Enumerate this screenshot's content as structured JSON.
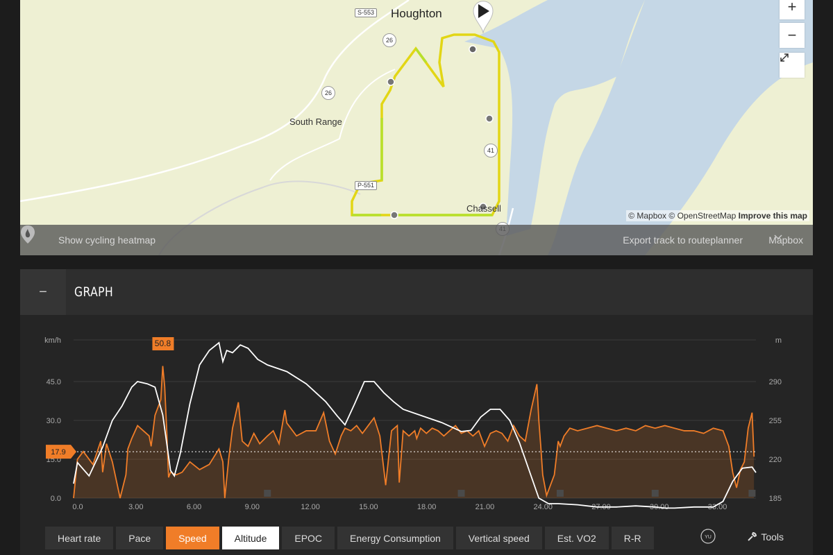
{
  "map": {
    "labels": {
      "city": "Houghton",
      "south_range": "South Range",
      "chassell": "Chassell"
    },
    "roads": {
      "s553": "S-553",
      "p551": "P-551",
      "h26a": "26",
      "h26b": "26",
      "us41a": "41",
      "us41b": "41"
    },
    "attribution": {
      "mapbox": "© Mapbox",
      "osm": "© OpenStreetMap",
      "improve": "Improve this map"
    },
    "bar": {
      "heatmap": "Show cycling heatmap",
      "export": "Export track to routeplanner",
      "provider": "Mapbox"
    },
    "zoom_in": "+",
    "zoom_out": "−"
  },
  "graph": {
    "title": "GRAPH",
    "collapse_label": "−"
  },
  "chart_data": {
    "type": "line",
    "left_unit": "km/h",
    "right_unit": "m",
    "x_ticks": [
      "0.0",
      "3.00",
      "6.00",
      "9.00",
      "12.00",
      "15.00",
      "18.00",
      "21.00",
      "24.00",
      "27.00",
      "30.00",
      "33.00"
    ],
    "x_tick_values": [
      0,
      3,
      6,
      9,
      12,
      15,
      18,
      21,
      24,
      27,
      30,
      33
    ],
    "left_ticks": [
      "0.0",
      "15.0",
      "30.0",
      "45.0"
    ],
    "left_tick_values": [
      0,
      15,
      30,
      45
    ],
    "right_ticks": [
      "185",
      "220",
      "255",
      "290"
    ],
    "right_tick_values": [
      185,
      220,
      255,
      290
    ],
    "xlim": [
      0,
      35.2
    ],
    "ylim_left": [
      0,
      60
    ],
    "ylim_right": [
      185,
      325
    ],
    "max_label": "50.8",
    "max_at": 4.6,
    "avg_label": "17.9",
    "avg_value": 17.9,
    "series": [
      {
        "name": "Speed",
        "color": "#f07d28",
        "x": [
          0,
          0.2,
          0.5,
          1.0,
          1.4,
          1.5,
          1.7,
          2.0,
          2.4,
          2.7,
          2.8,
          3.0,
          3.3,
          3.6,
          3.9,
          4.0,
          4.2,
          4.5,
          4.6,
          4.7,
          4.8,
          4.9,
          5.0,
          5.3,
          5.6,
          6.0,
          6.5,
          7.0,
          7.5,
          7.7,
          7.8,
          8.0,
          8.2,
          8.5,
          8.7,
          9.0,
          9.3,
          9.6,
          10.0,
          10.3,
          10.6,
          10.9,
          11.0,
          11.2,
          11.5,
          12.0,
          12.5,
          12.9,
          13.2,
          13.5,
          13.8,
          14.0,
          14.3,
          14.6,
          14.9,
          15.2,
          15.5,
          15.8,
          16.1,
          16.4,
          16.7,
          16.8,
          17.0,
          17.3,
          17.6,
          17.7,
          17.9,
          18.2,
          18.5,
          18.8,
          19.1,
          19.4,
          19.7,
          20.0,
          20.3,
          20.6,
          20.9,
          21.2,
          21.5,
          21.8,
          22.1,
          22.4,
          22.7,
          23.0,
          23.3,
          23.6,
          23.9,
          24.0,
          24.1,
          24.2,
          24.4,
          24.6,
          24.8,
          25.0,
          25.1,
          25.3,
          25.6,
          26.0,
          26.5,
          27.0,
          27.5,
          28.0,
          28.5,
          29.0,
          29.5,
          30.0,
          30.5,
          31.0,
          31.5,
          32.0,
          32.5,
          33.0,
          33.5,
          33.8,
          34.0,
          34.2,
          34.4,
          34.6,
          34.8,
          35.0,
          35.1
        ],
        "y": [
          0,
          15,
          18,
          13,
          22,
          10,
          21,
          14,
          0,
          9,
          19,
          23,
          28,
          26,
          24,
          20,
          32,
          38,
          51,
          43,
          27,
          8,
          10,
          9,
          10,
          14,
          11,
          13,
          19,
          14,
          0,
          15,
          27,
          37,
          22,
          20,
          25,
          21,
          24,
          26,
          21,
          34,
          29,
          27,
          24,
          26,
          26,
          33,
          22,
          17,
          24,
          27,
          26,
          28,
          25,
          28,
          31,
          24,
          5,
          26,
          28,
          6,
          26,
          24,
          26,
          23,
          27,
          25,
          27,
          26,
          24,
          26,
          28,
          25,
          26,
          24,
          26,
          20,
          25,
          26,
          25,
          22,
          28,
          24,
          22,
          34,
          44,
          30,
          20,
          9,
          1,
          5,
          9,
          22,
          20,
          24,
          27,
          26,
          27,
          28,
          27,
          26,
          27,
          26,
          28,
          27,
          28,
          27,
          26,
          26,
          25,
          27,
          26,
          20,
          10,
          4,
          11,
          14,
          27,
          33,
          16
        ]
      },
      {
        "name": "Altitude",
        "color": "#ffffff",
        "x": [
          0,
          0.2,
          0.8,
          1.5,
          2.0,
          2.5,
          3.0,
          3.3,
          3.8,
          4.2,
          4.6,
          5.0,
          5.2,
          5.5,
          6.0,
          6.5,
          7.0,
          7.5,
          7.7,
          7.9,
          8.2,
          8.6,
          9.0,
          9.5,
          10.0,
          11.0,
          12.0,
          13.0,
          13.6,
          14.0,
          14.5,
          15.0,
          15.5,
          16.0,
          16.5,
          17.0,
          18.0,
          19.0,
          20.0,
          20.5,
          21.0,
          21.5,
          22.0,
          22.5,
          23.0,
          23.5,
          24.0,
          24.5,
          25.0,
          26.0,
          27.0,
          28.0,
          29.0,
          30.0,
          30.5,
          31.0,
          32.0,
          33.0,
          33.5,
          34.0,
          34.5,
          35.0,
          35.2
        ],
        "y": [
          198,
          217,
          205,
          231,
          255,
          268,
          285,
          290,
          288,
          285,
          260,
          210,
          205,
          225,
          270,
          305,
          318,
          325,
          308,
          318,
          316,
          323,
          320,
          310,
          305,
          299,
          288,
          272,
          259,
          251,
          270,
          290,
          290,
          280,
          272,
          265,
          259,
          253,
          245,
          246,
          258,
          265,
          265,
          255,
          235,
          210,
          185,
          180,
          180,
          179,
          177,
          177,
          178,
          177,
          176,
          176,
          177,
          177,
          182,
          200,
          212,
          213,
          208
        ]
      }
    ]
  },
  "tabs": [
    "Heart rate",
    "Pace",
    "Speed",
    "Altitude",
    "EPOC",
    "Energy Consumption",
    "Vertical speed",
    "Est. VO2",
    "R-R"
  ],
  "tools_label": "Tools",
  "colors": {
    "accent": "#f07d28",
    "panel": "#252525",
    "header": "#2e2e2e"
  }
}
